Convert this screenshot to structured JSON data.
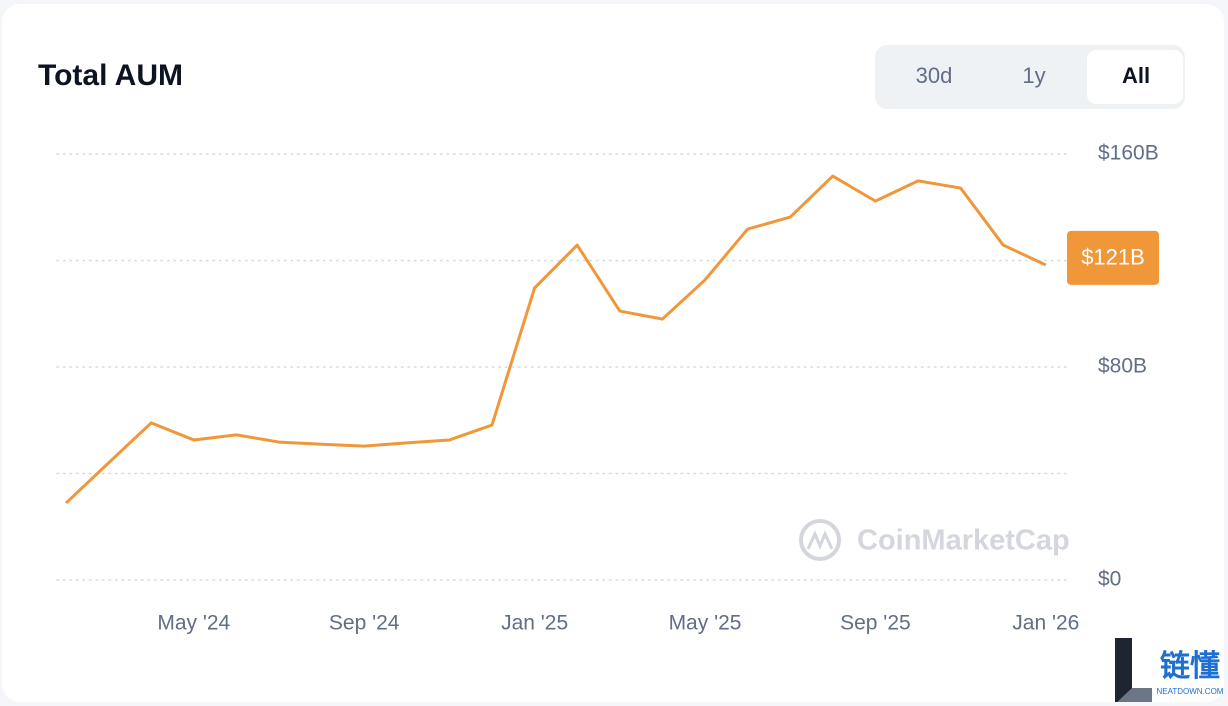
{
  "chart_data": {
    "type": "line",
    "title": "Total AUM",
    "range_buttons": [
      "30d",
      "1y",
      "All"
    ],
    "active_button": "All",
    "x": [
      "2024-02",
      "2024-03",
      "2024-04",
      "2024-05",
      "2024-06",
      "2024-07",
      "2024-08",
      "2024-09",
      "2024-10",
      "2024-11",
      "2024-12",
      "2025-01",
      "2025-02",
      "2025-03",
      "2025-04",
      "2025-05",
      "2025-06",
      "2025-07",
      "2025-08",
      "2025-09",
      "2025-10",
      "2025-11",
      "2025-12",
      "2026-01"
    ],
    "series": [
      {
        "name": "Total AUM",
        "color": "#f0973a",
        "values": [
          28.9,
          44,
          59,
          52.6,
          54.5,
          51.8,
          51,
          50.3,
          51.5,
          52.6,
          58.2,
          109.7,
          125.8,
          101,
          98,
          112.7,
          131.8,
          136.3,
          151.7,
          142.3,
          149.9,
          147.2,
          125.8,
          118.3
        ]
      }
    ],
    "current_value": 121,
    "current_value_label": "$121B",
    "xticks": [
      {
        "value": "2024-05",
        "label": "May '24"
      },
      {
        "value": "2024-09",
        "label": "Sep '24"
      },
      {
        "value": "2025-01",
        "label": "Jan '25"
      },
      {
        "value": "2025-05",
        "label": "May '25"
      },
      {
        "value": "2025-09",
        "label": "Sep '25"
      },
      {
        "value": "2026-01",
        "label": "Jan '26"
      }
    ],
    "ylim": [
      0,
      160
    ],
    "yticks": [
      {
        "value": 0,
        "label": "$0"
      },
      {
        "value": 40,
        "label": null
      },
      {
        "value": 80,
        "label": "$80B"
      },
      {
        "value": 120,
        "label": null
      },
      {
        "value": 160,
        "label": "$160B"
      }
    ],
    "grid": true,
    "y_axis_side": "right",
    "watermark": "CoinMarketCap"
  },
  "corner_logo": {
    "title": "链懂",
    "subtitle": "NEATDOWN.COM"
  }
}
